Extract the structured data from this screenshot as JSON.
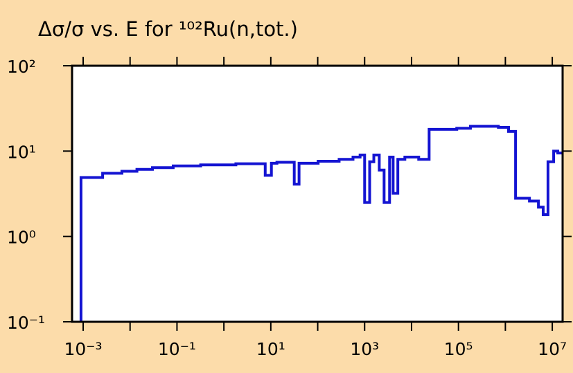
{
  "chart_data": {
    "type": "line",
    "title": "Δσ/σ vs. E for ¹⁰²Ru(n,tot.)",
    "x": [
      0.0009,
      0.0026,
      0.0067,
      0.014,
      0.03,
      0.083,
      0.32,
      1.8,
      7.6,
      10.3,
      13.5,
      31.6,
      40,
      102,
      286,
      565,
      800,
      1000,
      1280,
      1570,
      2050,
      2600,
      3400,
      4050,
      5100,
      7200,
      14200,
      23700,
      92000,
      180000,
      710000,
      1170000,
      1650000,
      3260000,
      5070000,
      6400000,
      8100000,
      10700000,
      13100000
    ],
    "series": [
      {
        "color": "#1414d2",
        "values": [
          4.9,
          5.5,
          5.8,
          6.1,
          6.4,
          6.7,
          6.9,
          7.1,
          5.2,
          7.2,
          7.4,
          4.1,
          7.2,
          7.6,
          8.0,
          8.5,
          9.0,
          2.5,
          7.5,
          9.0,
          6.0,
          2.5,
          8.5,
          3.2,
          8.0,
          8.5,
          8.0,
          18.0,
          18.5,
          19.5,
          19.0,
          17.0,
          2.8,
          2.6,
          2.2,
          1.8,
          7.5,
          10.0,
          9.5
        ]
      }
    ],
    "log_x": true,
    "log_y": true,
    "step": true,
    "xlim": [
      0.00058,
      16600000
    ],
    "ylim": [
      0.1,
      100
    ],
    "xticks": [
      {
        "value": 0.001,
        "label": "10⁻³"
      },
      {
        "value": 0.1,
        "label": "10⁻¹"
      },
      {
        "value": 10,
        "label": "10¹"
      },
      {
        "value": 1000,
        "label": "10³"
      },
      {
        "value": 100000,
        "label": "10⁵"
      },
      {
        "value": 10000000,
        "label": "10⁷"
      }
    ],
    "xminor_ticks": [
      0.01,
      1,
      100,
      10000,
      1000000
    ],
    "yticks": [
      {
        "value": 0.1,
        "label": "10⁻¹"
      },
      {
        "value": 1,
        "label": "10⁰"
      },
      {
        "value": 10,
        "label": "10¹"
      },
      {
        "value": 100,
        "label": "10²"
      }
    ]
  }
}
